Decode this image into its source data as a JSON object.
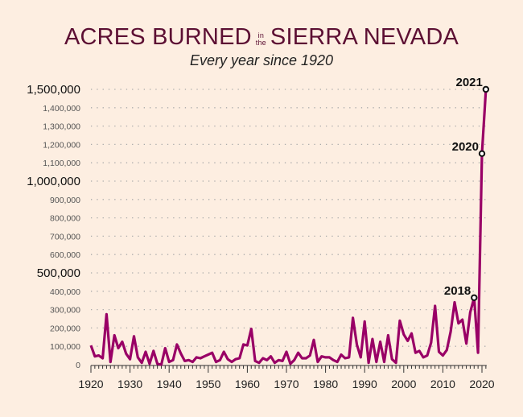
{
  "header": {
    "title_part1": "ACRES BURNED",
    "title_small_1": "in",
    "title_small_2": "the",
    "title_part2": "SIERRA NEVADA",
    "subtitle": "Every year since 1920"
  },
  "colors": {
    "line": "#990066",
    "title": "#5c0f33",
    "background": "#fdeee1"
  },
  "chart_data": {
    "type": "line",
    "title": "ACRES BURNED in the SIERRA NEVADA",
    "subtitle": "Every year since 1920",
    "xlabel": "",
    "ylabel": "",
    "ylim": [
      0,
      1500000
    ],
    "xlim": [
      1920,
      2021
    ],
    "grid": "horizontal dotted",
    "yticks": [
      {
        "value": 0,
        "label": "0",
        "major": false
      },
      {
        "value": 100000,
        "label": "100,000",
        "major": false
      },
      {
        "value": 200000,
        "label": "200,000",
        "major": false
      },
      {
        "value": 300000,
        "label": "300,000",
        "major": false
      },
      {
        "value": 400000,
        "label": "400,000",
        "major": false
      },
      {
        "value": 500000,
        "label": "500,000",
        "major": true
      },
      {
        "value": 600000,
        "label": "600,000",
        "major": false
      },
      {
        "value": 700000,
        "label": "700,000",
        "major": false
      },
      {
        "value": 800000,
        "label": "800,000",
        "major": false
      },
      {
        "value": 900000,
        "label": "900,000",
        "major": false
      },
      {
        "value": 1000000,
        "label": "1,000,000",
        "major": true
      },
      {
        "value": 1100000,
        "label": "1,100,000",
        "major": false
      },
      {
        "value": 1200000,
        "label": "1,200,000",
        "major": false
      },
      {
        "value": 1300000,
        "label": "1,300,000",
        "major": false
      },
      {
        "value": 1400000,
        "label": "1,400,000",
        "major": false
      },
      {
        "value": 1500000,
        "label": "1,500,000",
        "major": true
      }
    ],
    "xticks": [
      "1920",
      "1930",
      "1940",
      "1950",
      "1960",
      "1970",
      "1980",
      "1990",
      "2000",
      "2010",
      "2020"
    ],
    "series": [
      {
        "name": "Acres burned",
        "x": [
          1920,
          1921,
          1922,
          1923,
          1924,
          1925,
          1926,
          1927,
          1928,
          1929,
          1930,
          1931,
          1932,
          1933,
          1934,
          1935,
          1936,
          1937,
          1938,
          1939,
          1940,
          1941,
          1942,
          1943,
          1944,
          1945,
          1946,
          1947,
          1948,
          1949,
          1950,
          1951,
          1952,
          1953,
          1954,
          1955,
          1956,
          1957,
          1958,
          1959,
          1960,
          1961,
          1962,
          1963,
          1964,
          1965,
          1966,
          1967,
          1968,
          1969,
          1970,
          1971,
          1972,
          1973,
          1974,
          1975,
          1976,
          1977,
          1978,
          1979,
          1980,
          1981,
          1982,
          1983,
          1984,
          1985,
          1986,
          1987,
          1988,
          1989,
          1990,
          1991,
          1992,
          1993,
          1994,
          1995,
          1996,
          1997,
          1998,
          1999,
          2000,
          2001,
          2002,
          2003,
          2004,
          2005,
          2006,
          2007,
          2008,
          2009,
          2010,
          2011,
          2012,
          2013,
          2014,
          2015,
          2016,
          2017,
          2018,
          2019,
          2020,
          2021
        ],
        "values": [
          105000,
          45000,
          50000,
          35000,
          275000,
          15000,
          160000,
          90000,
          125000,
          60000,
          30000,
          155000,
          40000,
          10000,
          70000,
          5000,
          75000,
          5000,
          0,
          90000,
          15000,
          25000,
          110000,
          60000,
          20000,
          25000,
          15000,
          40000,
          35000,
          45000,
          55000,
          65000,
          15000,
          25000,
          70000,
          30000,
          15000,
          30000,
          35000,
          110000,
          105000,
          195000,
          20000,
          10000,
          35000,
          25000,
          45000,
          10000,
          25000,
          20000,
          70000,
          5000,
          25000,
          65000,
          35000,
          35000,
          50000,
          135000,
          15000,
          45000,
          40000,
          40000,
          25000,
          15000,
          55000,
          35000,
          40000,
          255000,
          110000,
          40000,
          235000,
          10000,
          140000,
          15000,
          125000,
          15000,
          160000,
          30000,
          10000,
          240000,
          165000,
          130000,
          170000,
          65000,
          75000,
          40000,
          50000,
          120000,
          320000,
          70000,
          50000,
          80000,
          180000,
          340000,
          225000,
          245000,
          115000,
          285000,
          365000,
          65000,
          1150000,
          1500000
        ]
      }
    ],
    "annotations": [
      {
        "year": 2018,
        "label": "2018",
        "value": 365000
      },
      {
        "year": 2020,
        "label": "2020",
        "value": 1150000
      },
      {
        "year": 2021,
        "label": "2021",
        "value": 1500000
      }
    ]
  }
}
